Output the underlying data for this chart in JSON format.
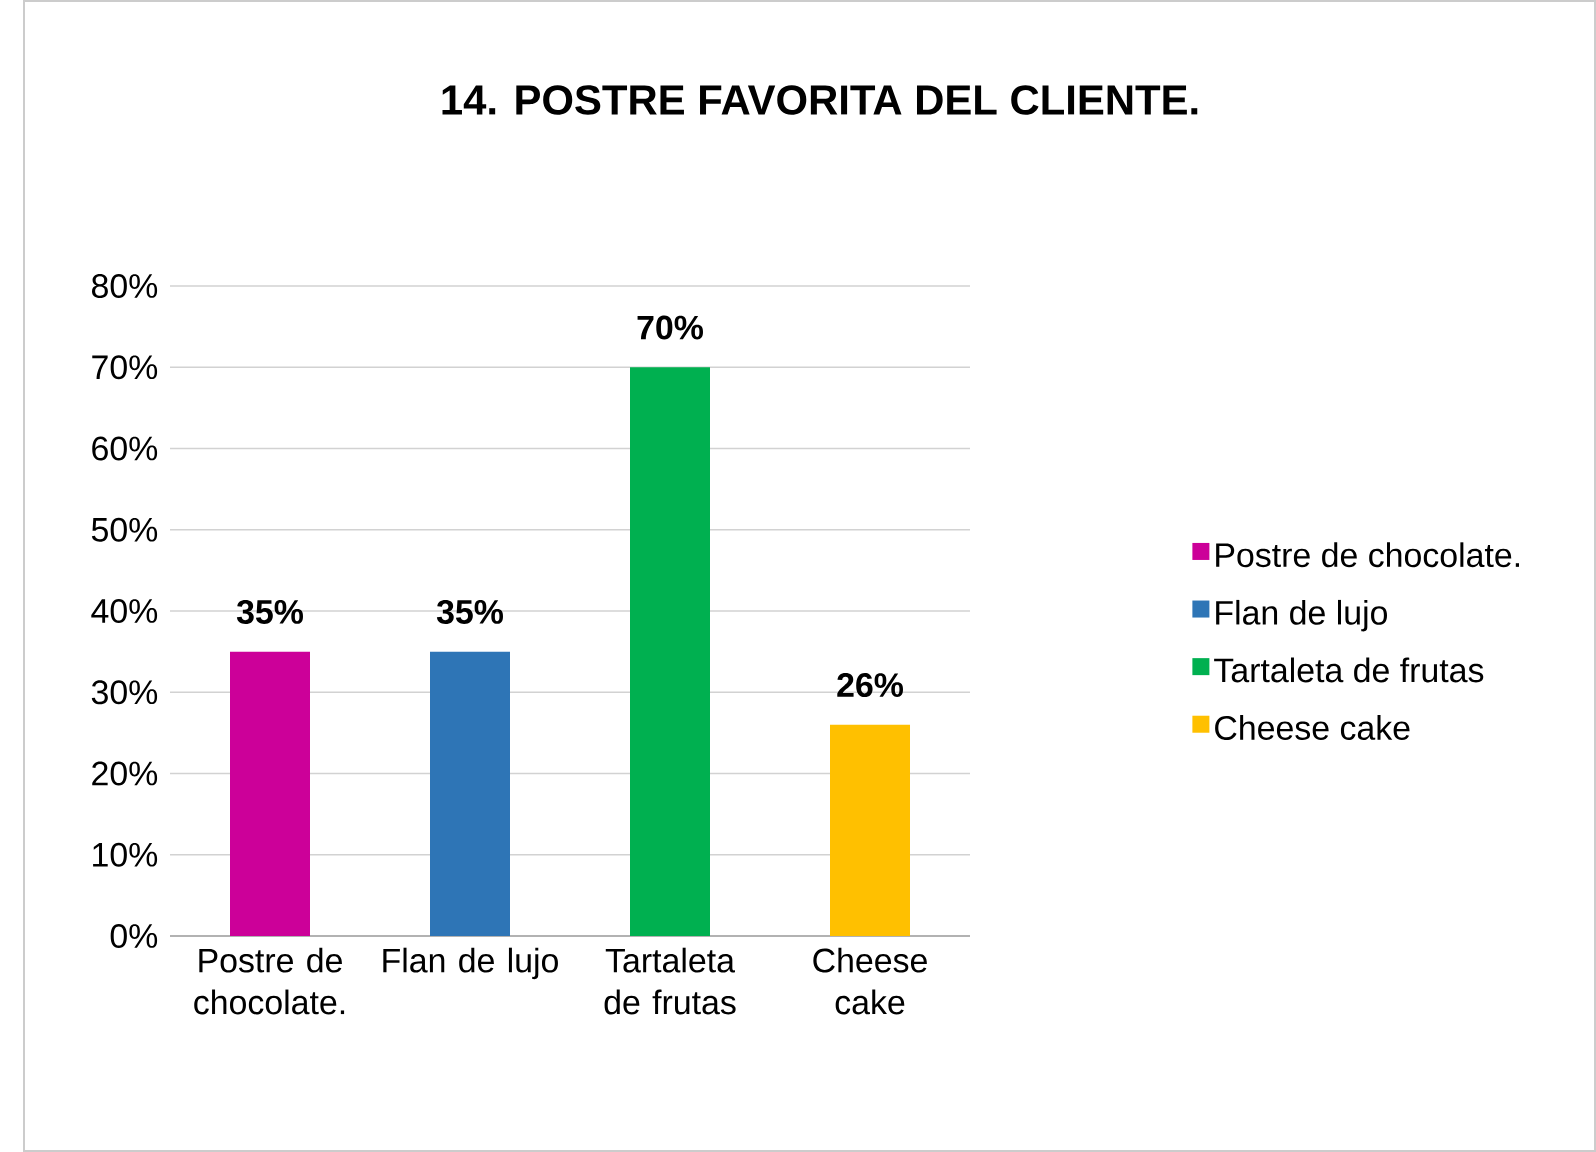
{
  "chart_data": {
    "type": "bar",
    "title": "14. POSTRE FAVORITA DEL CLIENTE.",
    "categories": [
      "Postre de chocolate.",
      "Flan de lujo",
      "Tartaleta de frutas",
      "Cheese cake"
    ],
    "series": [
      {
        "name": "Postre de chocolate.",
        "color": "#cc0099",
        "values": [
          35,
          null,
          null,
          null
        ],
        "value_labels": [
          "35%",
          null,
          null,
          null
        ]
      },
      {
        "name": "Flan de lujo",
        "color": "#2e75b6",
        "values": [
          null,
          35,
          null,
          null
        ],
        "value_labels": [
          null,
          "35%",
          null,
          null
        ]
      },
      {
        "name": "Tartaleta de frutas",
        "color": "#00b050",
        "values": [
          null,
          null,
          70,
          null
        ],
        "value_labels": [
          null,
          null,
          "70%",
          null
        ]
      },
      {
        "name": "Cheese cake",
        "color": "#ffc000",
        "values": [
          null,
          null,
          null,
          26
        ],
        "value_labels": [
          null,
          null,
          null,
          "26%"
        ]
      }
    ],
    "ylim": [
      0,
      80
    ],
    "yticks": [
      {
        "value": 0,
        "label": "0%"
      },
      {
        "value": 10,
        "label": "10%"
      },
      {
        "value": 20,
        "label": "20%"
      },
      {
        "value": 30,
        "label": "30%"
      },
      {
        "value": 40,
        "label": "40%"
      },
      {
        "value": 50,
        "label": "50%"
      },
      {
        "value": 60,
        "label": "60%"
      },
      {
        "value": 70,
        "label": "70%"
      },
      {
        "value": 80,
        "label": "80%"
      }
    ],
    "grid": "y",
    "legend": "right"
  }
}
